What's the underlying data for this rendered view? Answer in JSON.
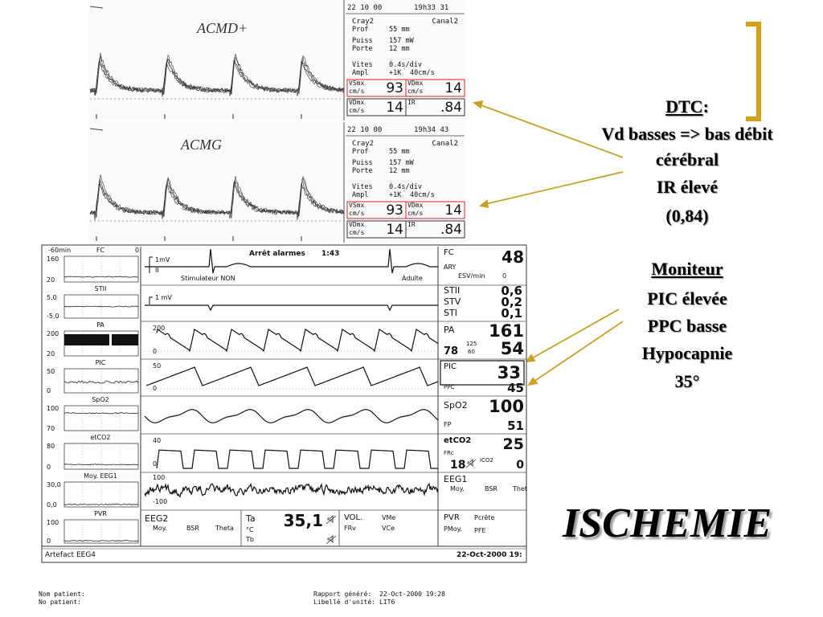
{
  "slide": {
    "dtc_title": "DTC",
    "dtc_colon": ":",
    "dtc_lines": [
      "Vd basses => bas débit",
      "cérébral",
      "IR élevé",
      "(0,84)"
    ],
    "monitor_title": "Moniteur",
    "monitor_lines": [
      "PIC élevée",
      "PPC basse",
      "Hypocapnie",
      "35°"
    ],
    "conclusion": "ISCHEMIE"
  },
  "doppler": [
    {
      "label": "ACMD+",
      "date": "22 10 00",
      "time": "19h33 31",
      "probe": "Cray2",
      "channel": "Canal2",
      "rows": [
        [
          "Prof",
          "55 mm"
        ],
        [
          "Puiss",
          "157 mW"
        ],
        [
          "Porte",
          "12 mm"
        ],
        [
          "Vites",
          "0.4s/div"
        ],
        [
          "Ampl",
          "+1K",
          "40cm/s"
        ]
      ],
      "boxes": [
        {
          "label": "VSmx",
          "unit": "cm/s",
          "value": "93"
        },
        {
          "label": "VDmx",
          "unit": "cm/s",
          "value": "14"
        },
        {
          "label": "VDmx",
          "unit": "cm/s",
          "value": "14"
        },
        {
          "label": "IR",
          "value": ".84"
        }
      ]
    },
    {
      "label": "ACMG",
      "date": "22 10 00",
      "time": "19h34 43",
      "probe": "Cray2",
      "channel": "Canal2",
      "rows": [
        [
          "Prof",
          "55 mm"
        ],
        [
          "Puiss",
          "157 mW"
        ],
        [
          "Porte",
          "12 mm"
        ],
        [
          "Vites",
          "0.4s/div"
        ],
        [
          "Ampl",
          "+1K",
          "40cm/s"
        ]
      ],
      "boxes": [
        {
          "label": "VSmx",
          "unit": "cm/s",
          "value": "93"
        },
        {
          "label": "VDmx",
          "unit": "cm/s",
          "value": "14"
        },
        {
          "label": "VDmx",
          "unit": "cm/s",
          "value": "14"
        },
        {
          "label": "IR",
          "value": ".84"
        }
      ]
    }
  ],
  "monitor": {
    "trend_header": [
      "-60min",
      "0"
    ],
    "trends": [
      {
        "name": "FC",
        "top": "160",
        "bottom": "20"
      },
      {
        "name": "STII",
        "top": "5,0",
        "bottom": "-5,0"
      },
      {
        "name": "PA",
        "top": "200",
        "bottom": "20"
      },
      {
        "name": "PIC",
        "top": "50",
        "bottom": "0"
      },
      {
        "name": "SpO2",
        "top": "100",
        "bottom": "70"
      },
      {
        "name": "etCO2",
        "top": "80",
        "bottom": "0"
      },
      {
        "name": "Moy. EEG1",
        "top": "30,0",
        "bottom": "0,0"
      },
      {
        "name": "PVR",
        "top": "100",
        "bottom": "0"
      }
    ],
    "ecg": {
      "gain": "1mV",
      "lead": "II",
      "alarm": "Arrêt alarmes",
      "alarm_time": "1:43",
      "pacer": "Stimulateur NON",
      "mode": "Adulte",
      "gain2": "1 mV"
    },
    "wave_scales": {
      "pa": [
        "200",
        "0"
      ],
      "pic": [
        "50",
        "0"
      ],
      "co2": [
        "40",
        "0"
      ],
      "eeg": [
        "100",
        "-100"
      ]
    },
    "params": {
      "fc": {
        "label": "FC",
        "value": "48",
        "sub": "ARY",
        "esv": "ESV/min",
        "esv_value": "0"
      },
      "st": [
        [
          "STII",
          "0,6"
        ],
        [
          "STV",
          "0,2"
        ],
        [
          "STI",
          "0,1"
        ]
      ],
      "pa": {
        "label": "PA",
        "sys": "161",
        "dia": "54",
        "mean": "78",
        "sub1": "125",
        "sub2": "60"
      },
      "pic": {
        "label": "PIC",
        "value": "33",
        "sub": "PPC",
        "sub_value": "45"
      },
      "spo2": {
        "label": "SpO2",
        "value": "100",
        "sub": "FP",
        "sub_value": "51"
      },
      "co2": {
        "label": "etCO2",
        "value": "25",
        "sub": "FRc",
        "rr": "18",
        "ico2": "iCO2",
        "ico2_value": "0"
      },
      "eeg1": {
        "label": "EEG1",
        "items": [
          "Moy.",
          "BSR",
          "Thet"
        ]
      }
    },
    "bottom": {
      "eeg2": [
        "EEG2",
        "Moy.",
        "BSR",
        "Theta"
      ],
      "temp": {
        "label": "Ta",
        "value": "35,1",
        "unit": "°C",
        "tb": "Tb"
      },
      "vol": [
        "VOL.",
        "VMe",
        "FRv",
        "VCe"
      ],
      "pvr": [
        "PVR",
        "Pcrête",
        "PMoy.",
        "PFE"
      ]
    },
    "status": {
      "message": "Artefact EEG4",
      "datetime": "22-Oct-2000 19:"
    }
  },
  "footer": {
    "left": [
      "Nom patient:",
      "No patient:"
    ],
    "right": [
      [
        "Rapport généré:",
        "22-Oct-2000 19:28"
      ],
      [
        "Libellé d'unité:",
        "LIT6"
      ]
    ]
  }
}
